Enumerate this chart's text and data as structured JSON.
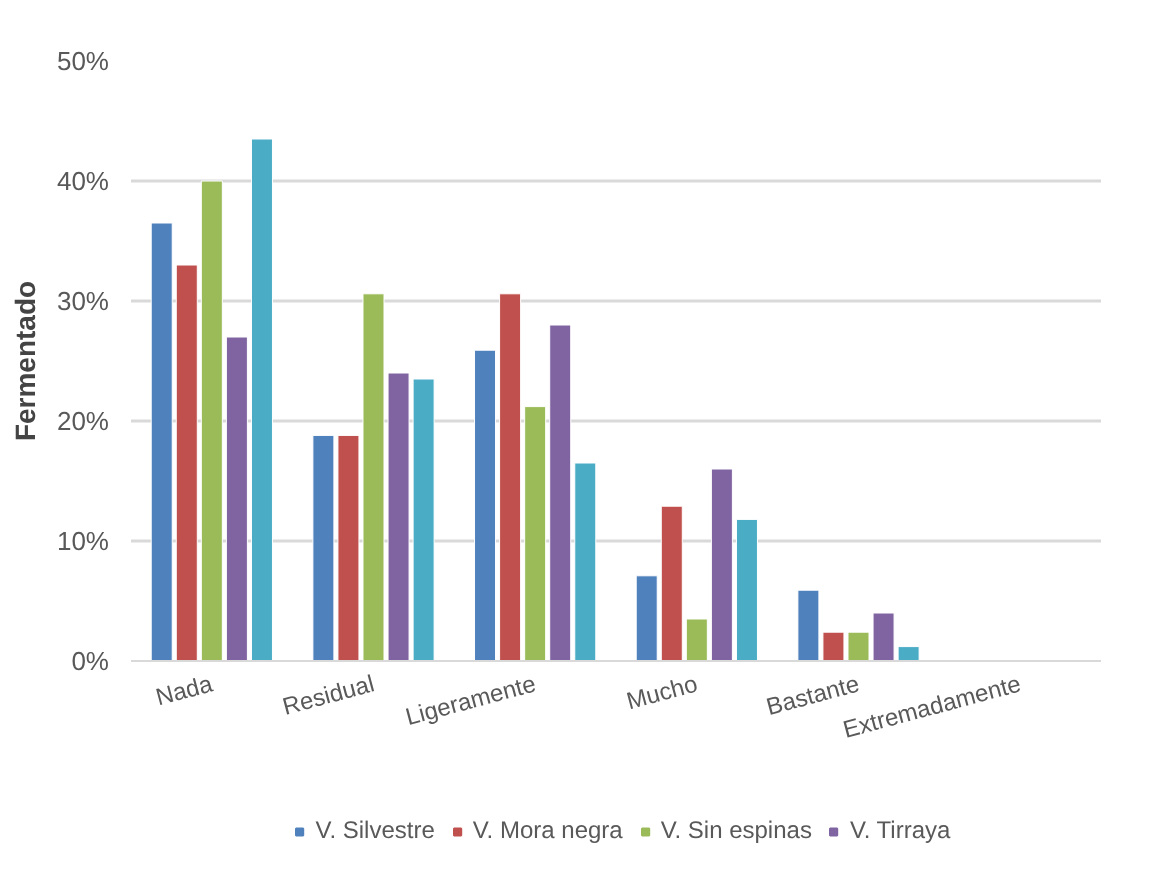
{
  "chart_data": {
    "type": "bar",
    "ylabel": "Fermentado",
    "categories": [
      "Nada",
      "Residual",
      "Ligeramente",
      "Mucho",
      "Bastante",
      "Extremadamente"
    ],
    "series": [
      {
        "name": "V. Silvestre",
        "color": "#4f81bd",
        "values": [
          36.5,
          18.8,
          25.9,
          7.1,
          5.9,
          null
        ]
      },
      {
        "name": "V. Mora negra",
        "color": "#c0504d",
        "values": [
          33,
          18.8,
          30.6,
          12.9,
          2.4,
          null
        ]
      },
      {
        "name": "V. Sin espinas",
        "color": "#9bbb59",
        "values": [
          40,
          30.6,
          21.2,
          3.5,
          2.4,
          null
        ]
      },
      {
        "name": "V. Tirraya",
        "color": "#8064a2",
        "values": [
          27,
          24,
          28,
          16,
          4,
          null
        ]
      },
      {
        "color": "#4bacc6",
        "values": [
          43.5,
          23.5,
          16.5,
          11.8,
          1.2,
          null
        ]
      }
    ],
    "ylim": [
      0,
      50
    ],
    "yticks": [
      {
        "value": 0,
        "label": "0%"
      },
      {
        "value": 10,
        "label": "10%"
      },
      {
        "value": 20,
        "label": "20%"
      },
      {
        "value": 30,
        "label": "30%"
      },
      {
        "value": 40,
        "label": "40%"
      },
      {
        "value": 50,
        "label": "50%"
      }
    ],
    "grid": "y",
    "legend": "bottom"
  }
}
